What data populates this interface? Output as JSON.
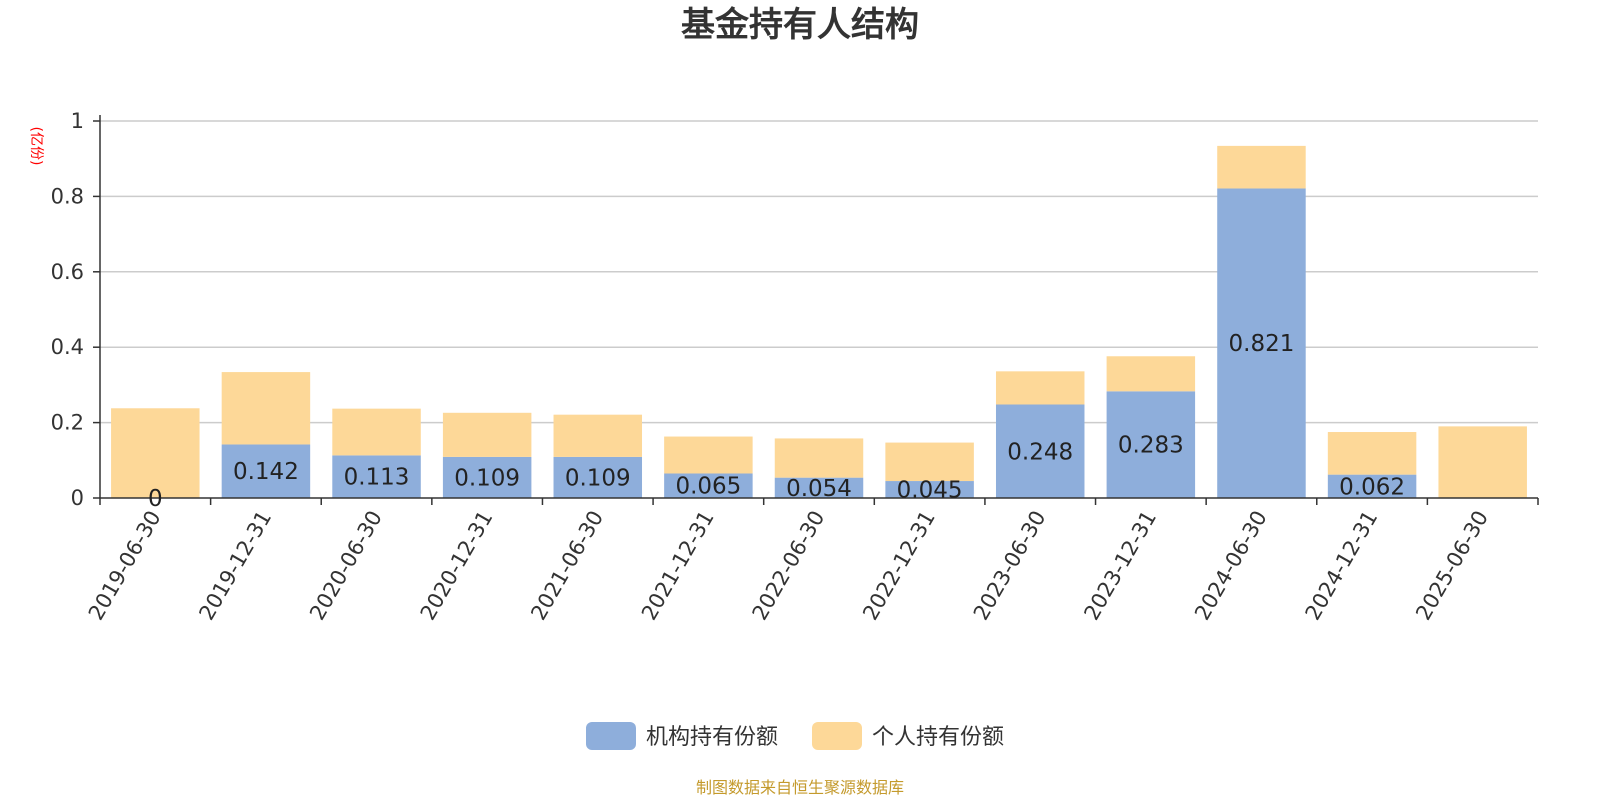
{
  "chart_data": {
    "type": "bar",
    "stacked": true,
    "title": "基金持有人结构",
    "unit_label": "(亿份)",
    "source": "制图数据来自恒生聚源数据库",
    "categories": [
      "2019-06-30",
      "2019-12-31",
      "2020-06-30",
      "2020-12-31",
      "2021-06-30",
      "2021-12-31",
      "2022-06-30",
      "2022-12-31",
      "2023-06-30",
      "2023-12-31",
      "2024-06-30",
      "2024-12-31",
      "2025-06-30"
    ],
    "ylim": [
      0,
      1
    ],
    "yticks": [
      "0",
      "0.2",
      "0.4",
      "0.6",
      "0.8",
      "1"
    ],
    "grid": true,
    "legend_position": "bottom",
    "series": [
      {
        "name": "机构持有份额",
        "color": "#8eaedb",
        "values": [
          0,
          0.142,
          0.113,
          0.109,
          0.109,
          0.065,
          0.054,
          0.045,
          0.248,
          0.283,
          0.821,
          0.062,
          0
        ],
        "labels": [
          "0",
          "0.142",
          "0.113",
          "0.109",
          "0.109",
          "0.065",
          "0.054",
          "0.045",
          "0.248",
          "0.283",
          "0.821",
          "0.062",
          ""
        ]
      },
      {
        "name": "个人持有份额",
        "color": "#fdd898",
        "values": [
          0.238,
          0.192,
          0.124,
          0.117,
          0.112,
          0.098,
          0.104,
          0.102,
          0.088,
          0.093,
          0.113,
          0.113,
          0.19
        ]
      }
    ]
  }
}
